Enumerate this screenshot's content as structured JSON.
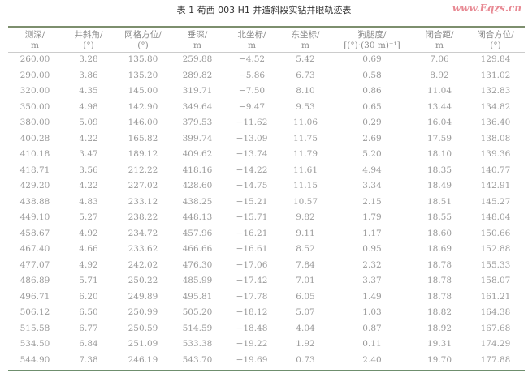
{
  "title": "表 1  苟西 003 H1 井造斜段实钻井眼轨迹表",
  "columns": [
    {
      "name": "测深/",
      "unit": "m"
    },
    {
      "name": "井斜角/",
      "unit": "(°)"
    },
    {
      "name": "网格方位/",
      "unit": "(°)"
    },
    {
      "name": "垂深/",
      "unit": "m"
    },
    {
      "name": "北坐标/",
      "unit": "m"
    },
    {
      "name": "东坐标/",
      "unit": "m"
    },
    {
      "name": "狗腿度/",
      "unit": "[(°)·(30 m)⁻¹]"
    },
    {
      "name": "闭合距/",
      "unit": "m"
    },
    {
      "name": "闭合方位/",
      "unit": "(°)"
    }
  ],
  "rows": [
    [
      "260.00",
      "3.28",
      "135.80",
      "259.88",
      "−4.52",
      "5.42",
      "0.69",
      "7.06",
      "129.84"
    ],
    [
      "290.00",
      "3.86",
      "135.20",
      "289.82",
      "−5.86",
      "6.73",
      "0.58",
      "8.92",
      "131.02"
    ],
    [
      "320.00",
      "4.35",
      "145.00",
      "319.71",
      "−7.50",
      "8.10",
      "0.86",
      "11.04",
      "132.83"
    ],
    [
      "350.00",
      "4.98",
      "142.90",
      "349.64",
      "−9.47",
      "9.53",
      "0.65",
      "13.44",
      "134.82"
    ],
    [
      "380.00",
      "5.09",
      "146.00",
      "379.53",
      "−11.62",
      "11.06",
      "0.29",
      "16.04",
      "136.40"
    ],
    [
      "400.28",
      "4.22",
      "165.82",
      "399.74",
      "−13.09",
      "11.75",
      "2.69",
      "17.59",
      "138.08"
    ],
    [
      "410.18",
      "3.47",
      "189.12",
      "409.62",
      "−13.74",
      "11.79",
      "5.20",
      "18.10",
      "139.36"
    ],
    [
      "418.71",
      "3.56",
      "212.22",
      "418.16",
      "−14.22",
      "11.61",
      "4.94",
      "18.35",
      "140.77"
    ],
    [
      "429.20",
      "4.22",
      "227.02",
      "428.60",
      "−14.75",
      "11.15",
      "3.34",
      "18.49",
      "142.91"
    ],
    [
      "438.88",
      "4.83",
      "233.12",
      "438.25",
      "−15.21",
      "10.57",
      "2.15",
      "18.51",
      "145.27"
    ],
    [
      "449.10",
      "5.27",
      "238.22",
      "448.13",
      "−15.71",
      "9.82",
      "1.79",
      "18.55",
      "148.04"
    ],
    [
      "458.67",
      "4.92",
      "234.72",
      "457.96",
      "−16.21",
      "9.11",
      "1.17",
      "18.60",
      "150.66"
    ],
    [
      "467.40",
      "4.66",
      "233.62",
      "466.66",
      "−16.61",
      "8.52",
      "0.95",
      "18.69",
      "152.88"
    ],
    [
      "477.07",
      "4.92",
      "242.02",
      "476.30",
      "−17.06",
      "7.84",
      "2.32",
      "18.78",
      "155.33"
    ],
    [
      "486.89",
      "5.71",
      "250.22",
      "485.99",
      "−17.42",
      "7.01",
      "3.37",
      "18.78",
      "158.07"
    ],
    [
      "496.71",
      "6.20",
      "249.89",
      "495.81",
      "−17.78",
      "6.05",
      "1.49",
      "18.78",
      "161.21"
    ],
    [
      "506.12",
      "6.50",
      "250.99",
      "505.20",
      "−18.12",
      "5.07",
      "1.03",
      "18.82",
      "164.38"
    ],
    [
      "515.58",
      "6.77",
      "250.59",
      "514.59",
      "−18.48",
      "4.04",
      "0.87",
      "18.92",
      "167.68"
    ],
    [
      "534.50",
      "6.84",
      "251.09",
      "533.38",
      "−19.22",
      "1.92",
      "0.11",
      "19.31",
      "174.29"
    ],
    [
      "544.90",
      "7.38",
      "246.19",
      "543.70",
      "−19.69",
      "0.73",
      "2.40",
      "19.70",
      "177.88"
    ]
  ],
  "watermark": "www.Eqzs.cn"
}
